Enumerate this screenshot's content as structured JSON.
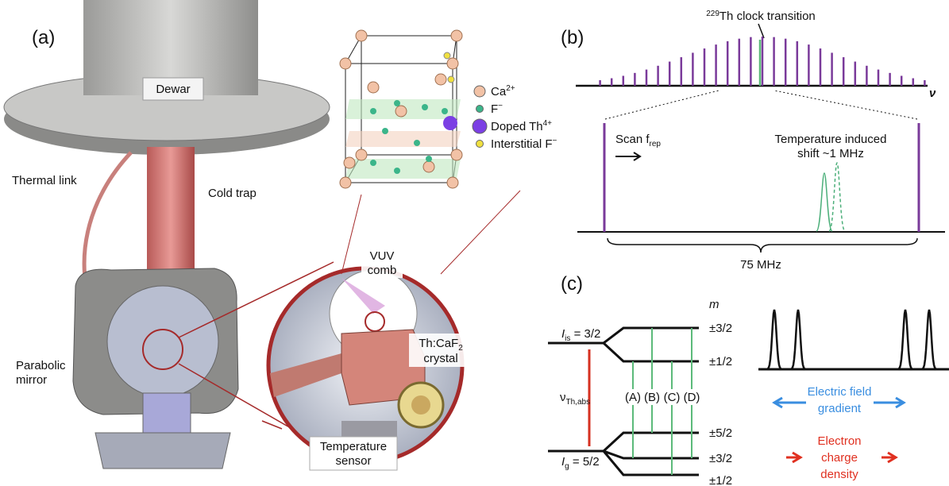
{
  "panel_a": {
    "label": "(a)",
    "dewar": "Dewar",
    "thermal_link": "Thermal link",
    "cold_trap": "Cold trap",
    "parabolic_mirror": [
      "Parabolic",
      "mirror"
    ],
    "vuv_comb": [
      "VUV",
      "comb"
    ],
    "crystal": {
      "base": "Th:CaF",
      "sub": "2",
      "line2": "crystal"
    },
    "temperature_sensor": [
      "Temperature",
      "sensor"
    ],
    "legend": [
      {
        "base": "Ca",
        "sup": "2+",
        "color": "#f2c2a6"
      },
      {
        "base": "F",
        "sup": "−",
        "color": "#3bb58a"
      },
      {
        "base": "Doped Th",
        "sup": "4+",
        "color": "#7b3fe4"
      },
      {
        "base": "Interstitial F",
        "sup": "−",
        "color": "#f0e040"
      }
    ]
  },
  "panel_b": {
    "label": "(b)",
    "clock": {
      "sup": "229",
      "text": "Th clock transition"
    },
    "axis": "ν",
    "scan": {
      "text": "Scan f",
      "sub": "rep"
    },
    "shift": [
      "Temperature induced",
      "shift ~1 MHz"
    ],
    "span": "75 MHz"
  },
  "panel_c": {
    "label": "(c)",
    "m": "m",
    "upper": {
      "base": "I",
      "sub": "is",
      "rest": " = 3/2"
    },
    "lower": {
      "base": "I",
      "sub": "g",
      "rest": " = 5/2"
    },
    "upper_m": [
      "±3/2",
      "±1/2"
    ],
    "lower_m": [
      "±5/2",
      "±3/2",
      "±1/2"
    ],
    "transition": {
      "base": "ν",
      "sub": "Th,abs"
    },
    "lines": [
      "(A)",
      "(B)",
      "(C)",
      "(D)"
    ],
    "efg": [
      "Electric field",
      "gradient"
    ],
    "ecd": [
      "Electron",
      "charge",
      "density"
    ]
  }
}
